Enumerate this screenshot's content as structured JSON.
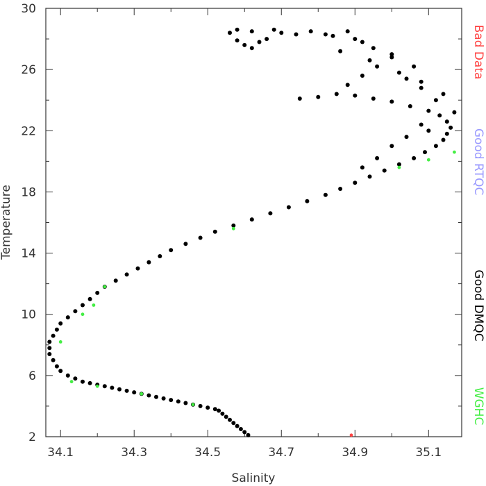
{
  "chart_data": {
    "type": "scatter",
    "xlabel": "Salinity",
    "ylabel": "Temperature",
    "xlim": [
      34.06,
      35.19
    ],
    "ylim": [
      2,
      30
    ],
    "x_ticks": [
      "34.1",
      "34.3",
      "34.5",
      "34.7",
      "34.9",
      "35.1"
    ],
    "y_ticks": [
      "2",
      "6",
      "10",
      "14",
      "18",
      "22",
      "26",
      "30"
    ],
    "legend": [
      {
        "label": "Bad Data",
        "color": "#ff4444"
      },
      {
        "label": "Good RTQC",
        "color": "#9999ff"
      },
      {
        "label": "Good DMQC",
        "color": "#000000"
      },
      {
        "label": "WGHC",
        "color": "#44ee44"
      }
    ],
    "series": [
      {
        "name": "Good DMQC",
        "color": "#000000",
        "points": [
          [
            34.61,
            2.1
          ],
          [
            34.6,
            2.3
          ],
          [
            34.59,
            2.5
          ],
          [
            34.58,
            2.7
          ],
          [
            34.57,
            2.9
          ],
          [
            34.56,
            3.1
          ],
          [
            34.55,
            3.3
          ],
          [
            34.54,
            3.5
          ],
          [
            34.53,
            3.7
          ],
          [
            34.52,
            3.8
          ],
          [
            34.5,
            3.9
          ],
          [
            34.48,
            4.0
          ],
          [
            34.46,
            4.1
          ],
          [
            34.44,
            4.2
          ],
          [
            34.42,
            4.3
          ],
          [
            34.4,
            4.4
          ],
          [
            34.38,
            4.5
          ],
          [
            34.36,
            4.6
          ],
          [
            34.34,
            4.7
          ],
          [
            34.32,
            4.8
          ],
          [
            34.3,
            4.9
          ],
          [
            34.28,
            5.0
          ],
          [
            34.26,
            5.1
          ],
          [
            34.24,
            5.2
          ],
          [
            34.22,
            5.3
          ],
          [
            34.2,
            5.4
          ],
          [
            34.18,
            5.5
          ],
          [
            34.16,
            5.6
          ],
          [
            34.14,
            5.8
          ],
          [
            34.12,
            6.0
          ],
          [
            34.1,
            6.3
          ],
          [
            34.09,
            6.6
          ],
          [
            34.08,
            7.0
          ],
          [
            34.07,
            7.4
          ],
          [
            34.07,
            7.8
          ],
          [
            34.07,
            8.2
          ],
          [
            34.08,
            8.6
          ],
          [
            34.09,
            9.0
          ],
          [
            34.1,
            9.4
          ],
          [
            34.12,
            9.8
          ],
          [
            34.14,
            10.2
          ],
          [
            34.16,
            10.6
          ],
          [
            34.18,
            11.0
          ],
          [
            34.2,
            11.4
          ],
          [
            34.22,
            11.8
          ],
          [
            34.25,
            12.2
          ],
          [
            34.28,
            12.6
          ],
          [
            34.31,
            13.0
          ],
          [
            34.34,
            13.4
          ],
          [
            34.37,
            13.8
          ],
          [
            34.4,
            14.2
          ],
          [
            34.44,
            14.6
          ],
          [
            34.48,
            15.0
          ],
          [
            34.52,
            15.4
          ],
          [
            34.57,
            15.8
          ],
          [
            34.62,
            16.2
          ],
          [
            34.67,
            16.6
          ],
          [
            34.72,
            17.0
          ],
          [
            34.77,
            17.4
          ],
          [
            34.82,
            17.8
          ],
          [
            34.86,
            18.2
          ],
          [
            34.9,
            18.6
          ],
          [
            34.94,
            19.0
          ],
          [
            34.98,
            19.4
          ],
          [
            35.02,
            19.8
          ],
          [
            35.06,
            20.2
          ],
          [
            35.09,
            20.6
          ],
          [
            35.12,
            21.0
          ],
          [
            35.14,
            21.4
          ],
          [
            35.15,
            21.8
          ],
          [
            35.16,
            22.2
          ],
          [
            35.15,
            22.6
          ],
          [
            35.13,
            23.0
          ],
          [
            35.1,
            23.3
          ],
          [
            35.05,
            23.6
          ],
          [
            35.0,
            23.9
          ],
          [
            34.95,
            24.1
          ],
          [
            34.9,
            24.3
          ],
          [
            34.85,
            24.4
          ],
          [
            34.8,
            24.2
          ],
          [
            34.75,
            24.1
          ],
          [
            34.88,
            25.0
          ],
          [
            34.92,
            25.6
          ],
          [
            34.96,
            26.2
          ],
          [
            35.0,
            26.8
          ],
          [
            35.04,
            25.4
          ],
          [
            35.08,
            24.8
          ],
          [
            35.12,
            24.0
          ],
          [
            34.86,
            27.2
          ],
          [
            34.84,
            28.2
          ],
          [
            34.88,
            28.5
          ],
          [
            34.92,
            27.8
          ],
          [
            34.95,
            27.4
          ],
          [
            35.0,
            27.0
          ],
          [
            35.06,
            26.2
          ],
          [
            34.78,
            28.5
          ],
          [
            34.74,
            28.3
          ],
          [
            34.7,
            28.4
          ],
          [
            34.66,
            28.0
          ],
          [
            34.62,
            28.5
          ],
          [
            34.58,
            28.6
          ],
          [
            34.56,
            28.4
          ],
          [
            34.6,
            27.6
          ],
          [
            34.64,
            27.8
          ],
          [
            34.58,
            27.9
          ],
          [
            34.62,
            27.4
          ],
          [
            34.68,
            28.6
          ],
          [
            34.82,
            28.3
          ],
          [
            34.9,
            28.0
          ],
          [
            34.94,
            26.6
          ],
          [
            35.02,
            25.8
          ],
          [
            35.08,
            25.2
          ],
          [
            35.14,
            24.4
          ],
          [
            35.1,
            22.0
          ],
          [
            35.17,
            23.2
          ],
          [
            35.08,
            22.4
          ],
          [
            35.04,
            21.6
          ],
          [
            35.0,
            21.0
          ],
          [
            34.96,
            20.2
          ],
          [
            34.92,
            19.6
          ]
        ]
      },
      {
        "name": "WGHC",
        "color": "#44ee44",
        "points": [
          [
            34.1,
            8.2
          ],
          [
            34.16,
            10.0
          ],
          [
            34.19,
            10.6
          ],
          [
            34.22,
            11.8
          ],
          [
            34.13,
            5.6
          ],
          [
            34.2,
            5.3
          ],
          [
            34.32,
            4.8
          ],
          [
            34.46,
            4.1
          ],
          [
            34.57,
            15.6
          ],
          [
            35.02,
            19.6
          ],
          [
            35.1,
            20.1
          ],
          [
            35.17,
            20.6
          ]
        ]
      },
      {
        "name": "Bad Data",
        "color": "#ff4444",
        "points": [
          [
            34.89,
            2.1
          ]
        ]
      }
    ]
  }
}
